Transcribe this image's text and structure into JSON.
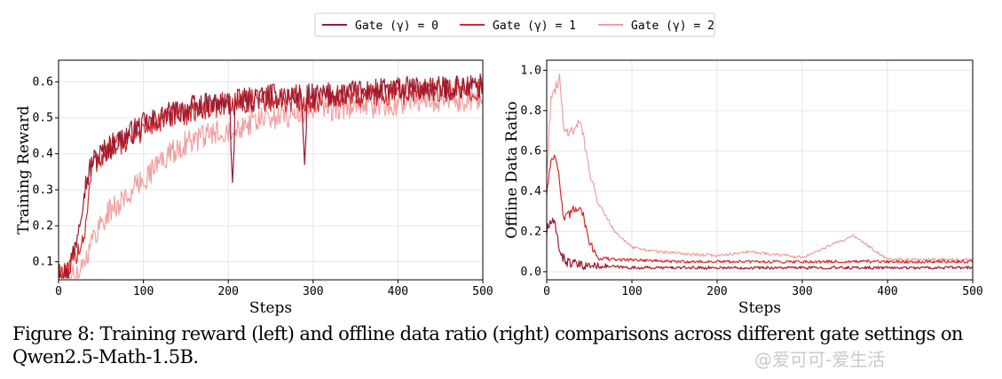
{
  "legend": {
    "items": [
      {
        "label": "Gate (γ) = 0",
        "color": "#9b1b30"
      },
      {
        "label": "Gate (γ) = 1",
        "color": "#d42a2a"
      },
      {
        "label": "Gate (γ) = 2",
        "color": "#f0a0a0"
      }
    ]
  },
  "caption": "Figure 8: Training reward (left) and offline data ratio (right) comparisons across different gate settings on Qwen2.5-Math-1.5B.",
  "watermark": "@爱可可-爱生活",
  "chart_data": [
    {
      "type": "line",
      "xlabel": "Steps",
      "ylabel": "Training Reward",
      "xlim": [
        0,
        500
      ],
      "ylim": [
        0.05,
        0.66
      ],
      "xticks": [
        0,
        100,
        200,
        300,
        400,
        500
      ],
      "yticks": [
        0.1,
        0.2,
        0.3,
        0.4,
        0.5,
        0.6
      ],
      "grid": true,
      "series": [
        {
          "name": "Gate (γ) = 0",
          "color": "#9b1b30",
          "x": [
            0,
            10,
            20,
            30,
            40,
            60,
            80,
            100,
            130,
            160,
            200,
            250,
            300,
            350,
            400,
            450,
            500
          ],
          "y": [
            0.09,
            0.06,
            0.15,
            0.3,
            0.38,
            0.42,
            0.45,
            0.48,
            0.51,
            0.53,
            0.54,
            0.56,
            0.56,
            0.57,
            0.58,
            0.58,
            0.59
          ],
          "dips": [
            [
              205,
              0.32
            ],
            [
              290,
              0.37
            ]
          ]
        },
        {
          "name": "Gate (γ) = 1",
          "color": "#d42a2a",
          "x": [
            0,
            10,
            20,
            30,
            40,
            60,
            80,
            100,
            130,
            160,
            200,
            250,
            300,
            350,
            400,
            450,
            500
          ],
          "y": [
            0.08,
            0.06,
            0.12,
            0.17,
            0.37,
            0.41,
            0.44,
            0.47,
            0.5,
            0.52,
            0.54,
            0.55,
            0.55,
            0.56,
            0.57,
            0.58,
            0.58
          ],
          "dips": []
        },
        {
          "name": "Gate (γ) = 2",
          "color": "#f0a0a0",
          "x": [
            0,
            10,
            20,
            30,
            40,
            50,
            60,
            80,
            100,
            120,
            150,
            200,
            250,
            300,
            350,
            400,
            450,
            500
          ],
          "y": [
            0.07,
            0.05,
            0.06,
            0.1,
            0.16,
            0.21,
            0.24,
            0.28,
            0.33,
            0.38,
            0.43,
            0.47,
            0.5,
            0.52,
            0.53,
            0.54,
            0.55,
            0.55
          ],
          "dips": []
        }
      ]
    },
    {
      "type": "line",
      "xlabel": "Steps",
      "ylabel": "Offline Data Ratio",
      "xlim": [
        0,
        500
      ],
      "ylim": [
        -0.04,
        1.05
      ],
      "xticks": [
        0,
        100,
        200,
        300,
        400,
        500
      ],
      "yticks": [
        0.0,
        0.2,
        0.4,
        0.6,
        0.8,
        1.0
      ],
      "grid": true,
      "series": [
        {
          "name": "Gate (γ) = 0",
          "color": "#9b1b30",
          "x": [
            0,
            5,
            10,
            15,
            20,
            30,
            40,
            60,
            100,
            150,
            200,
            300,
            400,
            500
          ],
          "y": [
            0.2,
            0.25,
            0.22,
            0.12,
            0.06,
            0.04,
            0.03,
            0.03,
            0.02,
            0.02,
            0.02,
            0.02,
            0.02,
            0.02
          ],
          "dips": []
        },
        {
          "name": "Gate (γ) = 1",
          "color": "#d42a2a",
          "x": [
            0,
            5,
            10,
            15,
            20,
            30,
            40,
            50,
            60,
            80,
            100,
            150,
            200,
            300,
            400,
            500
          ],
          "y": [
            0.4,
            0.55,
            0.6,
            0.45,
            0.25,
            0.3,
            0.33,
            0.15,
            0.07,
            0.06,
            0.06,
            0.05,
            0.05,
            0.05,
            0.05,
            0.05
          ],
          "dips": []
        },
        {
          "name": "Gate (γ) = 2",
          "color": "#f0a0a0",
          "x": [
            0,
            5,
            10,
            15,
            20,
            30,
            40,
            50,
            60,
            80,
            100,
            130,
            160,
            200,
            240,
            300,
            360,
            400,
            450,
            500
          ],
          "y": [
            0.5,
            0.85,
            0.9,
            0.97,
            0.7,
            0.7,
            0.75,
            0.5,
            0.35,
            0.2,
            0.12,
            0.1,
            0.09,
            0.08,
            0.1,
            0.07,
            0.18,
            0.06,
            0.06,
            0.06
          ],
          "dips": []
        }
      ]
    }
  ]
}
